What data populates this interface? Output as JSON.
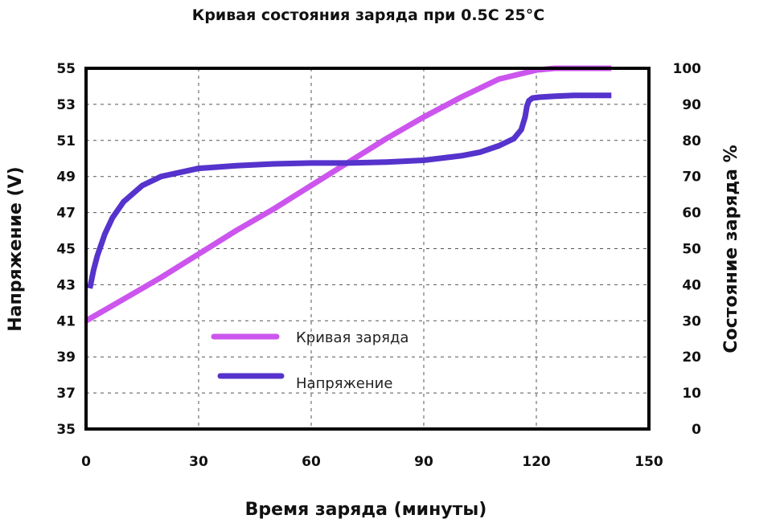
{
  "chart_data": {
    "type": "line",
    "title": "Кривая состояния заряда при 0.5C  25°C",
    "xlabel": "Время заряда (минуты)",
    "ylabel_left": "Напряжение (V)",
    "ylabel_right": "Состояние заряда %",
    "xlim": [
      0,
      150
    ],
    "ylim_left": [
      35,
      55
    ],
    "ylim_right": [
      0,
      100
    ],
    "x_ticks": [
      "0",
      "30",
      "60",
      "90",
      "120",
      "150"
    ],
    "y_ticks_left": [
      "35",
      "37",
      "39",
      "41",
      "43",
      "45",
      "47",
      "49",
      "51",
      "53",
      "55"
    ],
    "y_ticks_right": [
      "0",
      "10",
      "20",
      "30",
      "40",
      "50",
      "60",
      "70",
      "80",
      "90",
      "100"
    ],
    "grid": true,
    "legend_position": "center-left",
    "colors": {
      "soc": "#cc55ee",
      "voltage": "#5533cc"
    },
    "series": [
      {
        "name": "Кривая заряда",
        "axis": "right",
        "x": [
          0,
          10,
          20,
          30,
          40,
          50,
          60,
          70,
          80,
          90,
          100,
          110,
          120,
          125,
          130,
          135,
          140
        ],
        "y": [
          30,
          36,
          42,
          48.5,
          55,
          61,
          67.5,
          74,
          80.5,
          86.5,
          92,
          97,
          99.5,
          100,
          100,
          100,
          100
        ]
      },
      {
        "name": "Напряжение",
        "axis": "left",
        "x": [
          1,
          2,
          3,
          5,
          7,
          10,
          15,
          20,
          30,
          40,
          50,
          60,
          70,
          80,
          90,
          100,
          105,
          110,
          114,
          116,
          117,
          117.5,
          118,
          119,
          121,
          125,
          130,
          140
        ],
        "y": [
          42.8,
          43.8,
          44.6,
          45.8,
          46.7,
          47.6,
          48.5,
          49.0,
          49.45,
          49.6,
          49.7,
          49.75,
          49.75,
          49.8,
          49.9,
          50.15,
          50.35,
          50.7,
          51.1,
          51.6,
          52.3,
          52.9,
          53.2,
          53.35,
          53.4,
          53.45,
          53.5,
          53.5
        ]
      }
    ]
  }
}
